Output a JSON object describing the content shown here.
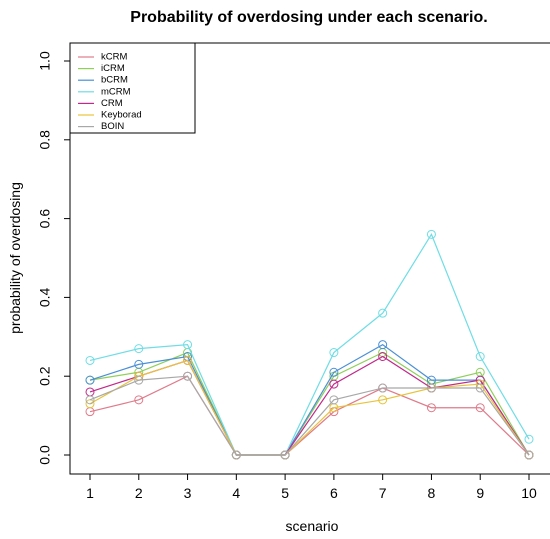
{
  "chart_data": {
    "type": "line",
    "title": "Probability of overdosing under each scenario.",
    "xlabel": "scenario",
    "ylabel": "probability of overdosing",
    "x": [
      1,
      2,
      3,
      4,
      5,
      6,
      7,
      8,
      9,
      10
    ],
    "xlim": [
      1,
      10
    ],
    "ylim": [
      0,
      1
    ],
    "yticks": [
      0.0,
      0.2,
      0.4,
      0.6,
      0.8,
      1.0
    ],
    "ytick_labels": [
      "0.0",
      "0.2",
      "0.4",
      "0.6",
      "0.8",
      "1.0"
    ],
    "xtick_labels": [
      "1",
      "2",
      "3",
      "4",
      "5",
      "6",
      "7",
      "8",
      "9",
      "10"
    ],
    "legend_position": "top-left",
    "grid": false,
    "marker": "open-circle",
    "series": [
      {
        "name": "kCRM",
        "color": "#e07b8a",
        "values": [
          0.11,
          0.14,
          0.2,
          0.0,
          0.0,
          0.11,
          0.17,
          0.12,
          0.12,
          0.0
        ]
      },
      {
        "name": "iCRM",
        "color": "#8fcf5a",
        "values": [
          0.19,
          0.21,
          0.26,
          0.0,
          0.0,
          0.2,
          0.26,
          0.18,
          0.21,
          0.0
        ]
      },
      {
        "name": "bCRM",
        "color": "#4a8fd6",
        "values": [
          0.19,
          0.23,
          0.25,
          0.0,
          0.0,
          0.21,
          0.28,
          0.19,
          0.19,
          0.0
        ]
      },
      {
        "name": "mCRM",
        "color": "#6fdde5",
        "values": [
          0.24,
          0.27,
          0.28,
          0.0,
          0.0,
          0.26,
          0.36,
          0.56,
          0.25,
          0.04
        ]
      },
      {
        "name": "CRM",
        "color": "#c2298a",
        "values": [
          0.16,
          0.2,
          0.24,
          0.0,
          0.0,
          0.18,
          0.25,
          0.17,
          0.19,
          0.0
        ]
      },
      {
        "name": "Keyborad",
        "color": "#e8c33a",
        "values": [
          0.13,
          0.2,
          0.24,
          0.0,
          0.0,
          0.12,
          0.14,
          0.17,
          0.18,
          0.0
        ]
      },
      {
        "name": "BOIN",
        "color": "#a8a8a8",
        "values": [
          0.14,
          0.19,
          0.2,
          0.0,
          0.0,
          0.14,
          0.17,
          0.17,
          0.17,
          0.0
        ]
      }
    ]
  }
}
